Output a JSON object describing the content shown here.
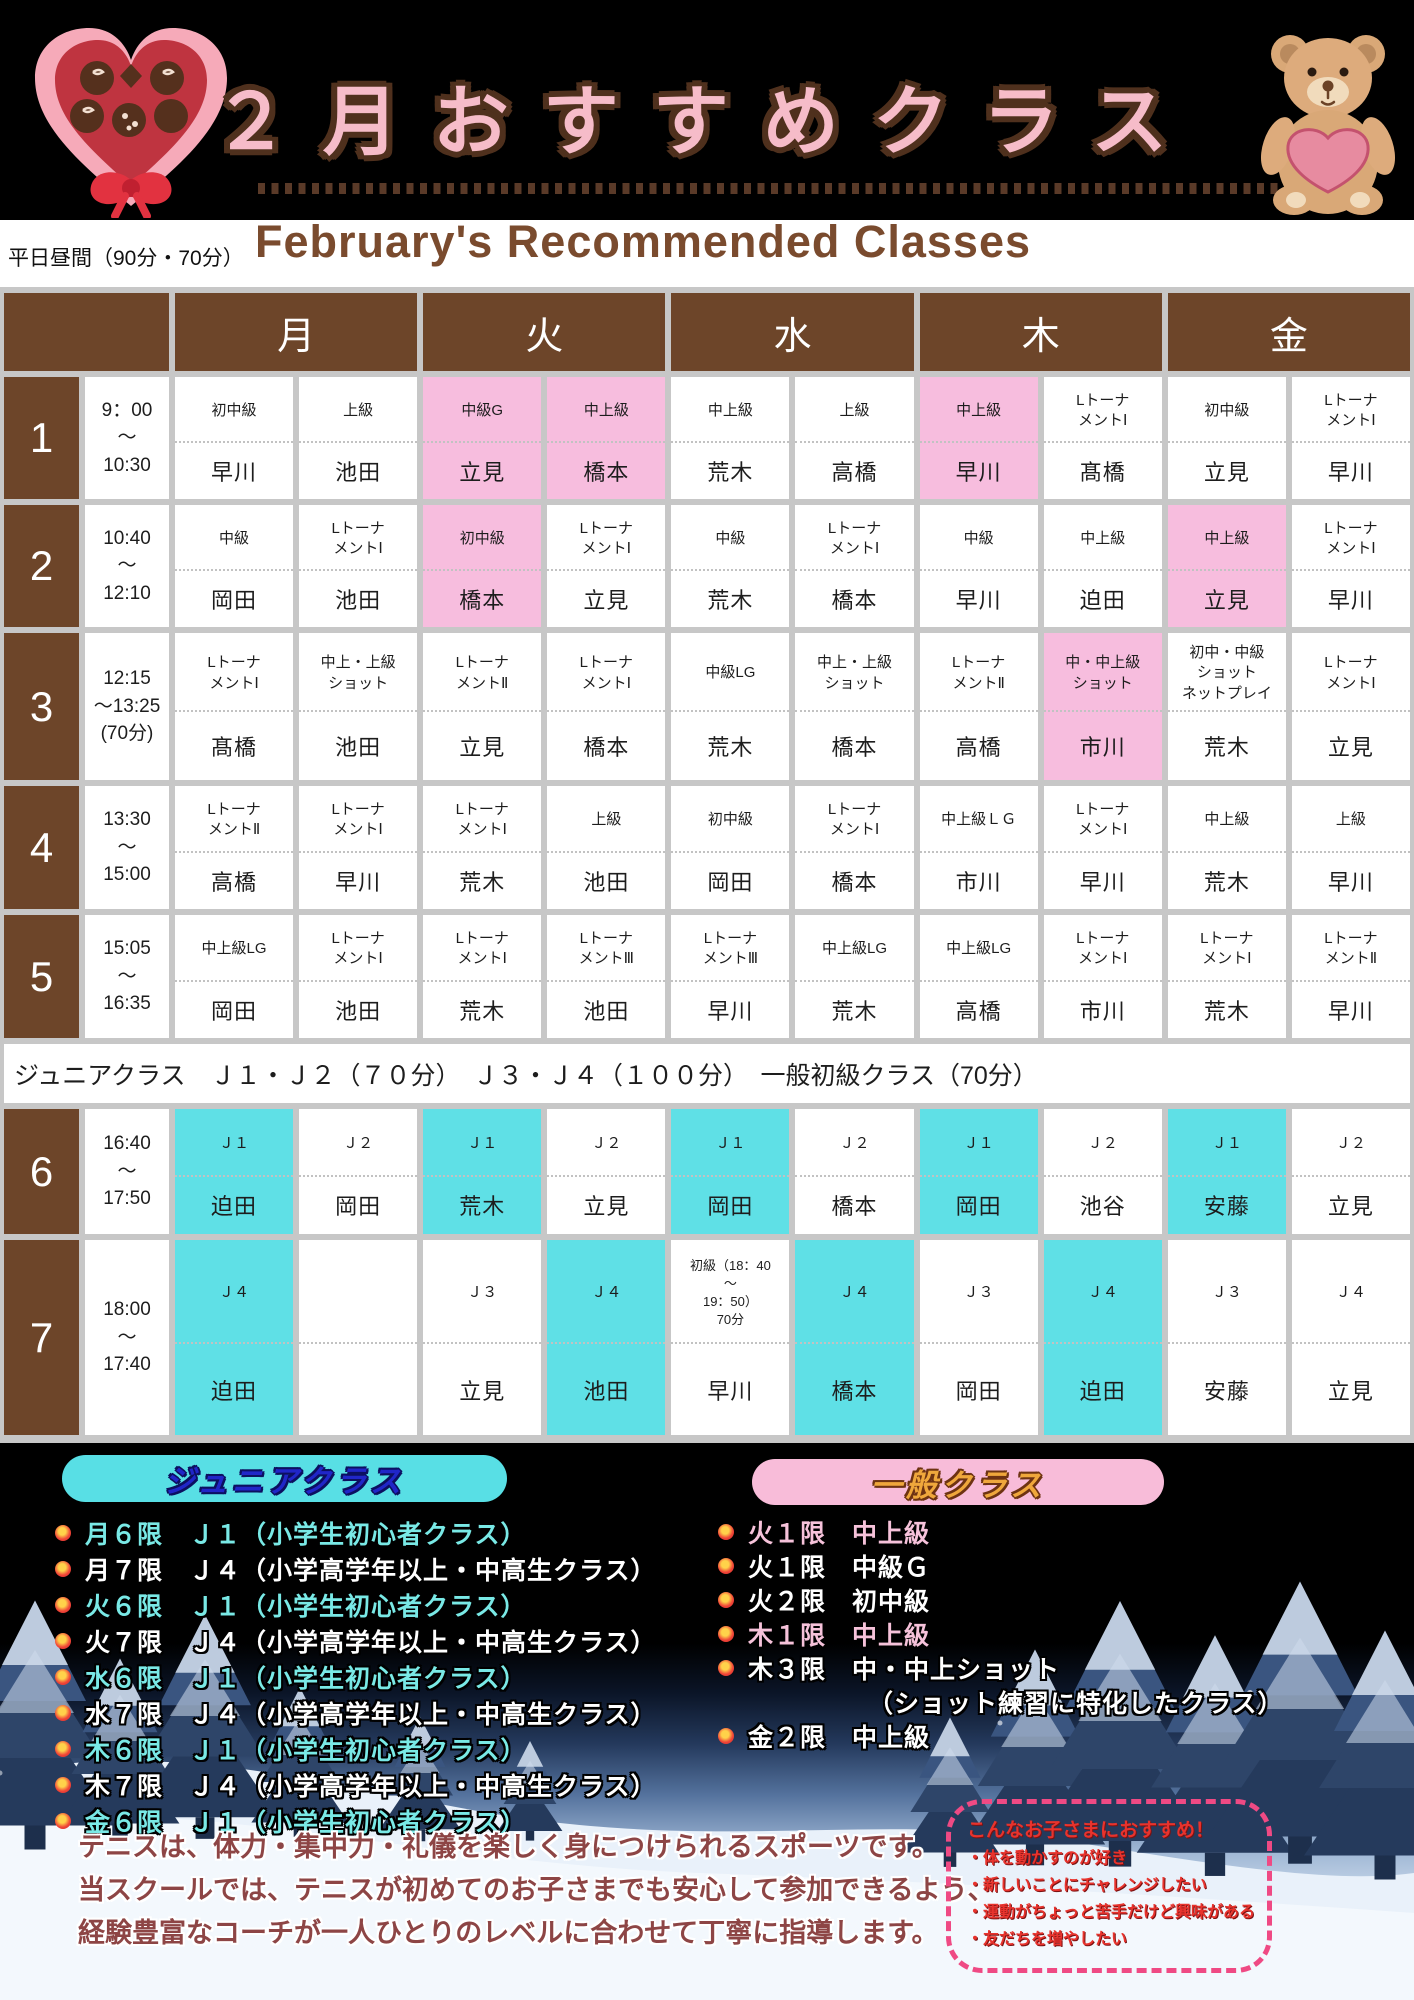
{
  "header": {
    "title": "２月おすすめクラス",
    "subtitle_en": "February's Recommended Classes",
    "weekday_note": "平日昼間（90分・70分）",
    "decor_left": "chocolate-heart-box",
    "decor_right": "teddy-bear-with-heart",
    "colors": {
      "bg": "#000000",
      "title_fill": "#f6bcc9",
      "title_outline": "#4f301d",
      "subtitle_fill": "#7a4b2e"
    }
  },
  "schedule": {
    "days": [
      "月",
      "火",
      "水",
      "木",
      "金"
    ],
    "colors": {
      "header_bg": "#6d4529",
      "grid": "#c7c7c7",
      "recommended_pink": "#f7bdde",
      "junior_cyan": "#5fe0e6",
      "default": "#ffffff"
    },
    "junior_band_note": "ジュニアクラス　Ｊ１・Ｊ２（７０分）　Ｊ３・Ｊ４（１００分）　一般初級クラス（70分）",
    "periods": [
      {
        "num": "1",
        "time": "9：00\n～\n10:30",
        "cells": [
          {
            "c": "初中級",
            "t": "早川",
            "bg": "w"
          },
          {
            "c": "上級",
            "t": "池田",
            "bg": "w"
          },
          {
            "c": "中級G",
            "t": "立見",
            "bg": "p"
          },
          {
            "c": "中上級",
            "t": "橋本",
            "bg": "p"
          },
          {
            "c": "中上級",
            "t": "荒木",
            "bg": "w"
          },
          {
            "c": "上級",
            "t": "高橋",
            "bg": "w"
          },
          {
            "c": "中上級",
            "t": "早川",
            "bg": "p"
          },
          {
            "c": "Lトーナ\nメントⅠ",
            "t": "髙橋",
            "bg": "w"
          },
          {
            "c": "初中級",
            "t": "立見",
            "bg": "w"
          },
          {
            "c": "Lトーナ\nメントⅠ",
            "t": "早川",
            "bg": "w"
          }
        ]
      },
      {
        "num": "2",
        "time": "10:40\n～\n12:10",
        "cells": [
          {
            "c": "中級",
            "t": "岡田",
            "bg": "w"
          },
          {
            "c": "Lトーナ\nメントⅠ",
            "t": "池田",
            "bg": "w"
          },
          {
            "c": "初中級",
            "t": "橋本",
            "bg": "p"
          },
          {
            "c": "Lトーナ\nメントⅠ",
            "t": "立見",
            "bg": "w"
          },
          {
            "c": "中級",
            "t": "荒木",
            "bg": "w"
          },
          {
            "c": "Lトーナ\nメントⅠ",
            "t": "橋本",
            "bg": "w"
          },
          {
            "c": "中級",
            "t": "早川",
            "bg": "w"
          },
          {
            "c": "中上級",
            "t": "迫田",
            "bg": "w"
          },
          {
            "c": "中上級",
            "t": "立見",
            "bg": "p"
          },
          {
            "c": "Lトーナ\nメントⅠ",
            "t": "早川",
            "bg": "w"
          }
        ]
      },
      {
        "num": "3",
        "time": "12:15\n～13:25\n(70分)",
        "cells": [
          {
            "c": "Lトーナ\nメントⅠ",
            "t": "髙橋",
            "bg": "w"
          },
          {
            "c": "中上・上級\nショット",
            "t": "池田",
            "bg": "w"
          },
          {
            "c": "Lトーナ\nメントⅡ",
            "t": "立見",
            "bg": "w"
          },
          {
            "c": "Lトーナ\nメントⅠ",
            "t": "橋本",
            "bg": "w"
          },
          {
            "c": "中級LG",
            "t": "荒木",
            "bg": "w"
          },
          {
            "c": "中上・上級\nショット",
            "t": "橋本",
            "bg": "w"
          },
          {
            "c": "Lトーナ\nメントⅡ",
            "t": "高橋",
            "bg": "w"
          },
          {
            "c": "中・中上級\nショット",
            "t": "市川",
            "bg": "p"
          },
          {
            "c": "初中・中級\nショット\nネットプレイ",
            "t": "荒木",
            "bg": "w"
          },
          {
            "c": "Lトーナ\nメントⅠ",
            "t": "立見",
            "bg": "w"
          }
        ]
      },
      {
        "num": "4",
        "time": "13:30\n～\n15:00",
        "cells": [
          {
            "c": "Lトーナ\nメントⅡ",
            "t": "高橋",
            "bg": "w"
          },
          {
            "c": "Lトーナ\nメントⅠ",
            "t": "早川",
            "bg": "w"
          },
          {
            "c": "Lトーナ\nメントⅠ",
            "t": "荒木",
            "bg": "w"
          },
          {
            "c": "上級",
            "t": "池田",
            "bg": "w"
          },
          {
            "c": "初中級",
            "t": "岡田",
            "bg": "w"
          },
          {
            "c": "Lトーナ\nメントⅠ",
            "t": "橋本",
            "bg": "w"
          },
          {
            "c": "中上級ＬＧ",
            "t": "市川",
            "bg": "w"
          },
          {
            "c": "Lトーナ\nメントⅠ",
            "t": "早川",
            "bg": "w"
          },
          {
            "c": "中上級",
            "t": "荒木",
            "bg": "w"
          },
          {
            "c": "上級",
            "t": "早川",
            "bg": "w"
          }
        ]
      },
      {
        "num": "5",
        "time": "15:05\n～\n16:35",
        "cells": [
          {
            "c": "中上級LG",
            "t": "岡田",
            "bg": "w"
          },
          {
            "c": "Lトーナ\nメントⅠ",
            "t": "池田",
            "bg": "w"
          },
          {
            "c": "Lトーナ\nメントⅠ",
            "t": "荒木",
            "bg": "w"
          },
          {
            "c": "Lトーナ\nメントⅢ",
            "t": "池田",
            "bg": "w"
          },
          {
            "c": "Lトーナ\nメントⅢ",
            "t": "早川",
            "bg": "w"
          },
          {
            "c": "中上級LG",
            "t": "荒木",
            "bg": "w"
          },
          {
            "c": "中上級LG",
            "t": "高橋",
            "bg": "w"
          },
          {
            "c": "Lトーナ\nメントⅠ",
            "t": "市川",
            "bg": "w"
          },
          {
            "c": "Lトーナ\nメントⅠ",
            "t": "荒木",
            "bg": "w"
          },
          {
            "c": "Lトーナ\nメントⅡ",
            "t": "早川",
            "bg": "w"
          }
        ]
      },
      {
        "num": "6",
        "time": "16:40\n～\n17:50",
        "cells": [
          {
            "c": "Ｊ１",
            "t": "迫田",
            "bg": "c"
          },
          {
            "c": "Ｊ２",
            "t": "岡田",
            "bg": "w"
          },
          {
            "c": "Ｊ１",
            "t": "荒木",
            "bg": "c"
          },
          {
            "c": "Ｊ２",
            "t": "立見",
            "bg": "w"
          },
          {
            "c": "Ｊ１",
            "t": "岡田",
            "bg": "c"
          },
          {
            "c": "Ｊ２",
            "t": "橋本",
            "bg": "w"
          },
          {
            "c": "Ｊ１",
            "t": "岡田",
            "bg": "c"
          },
          {
            "c": "Ｊ２",
            "t": "池谷",
            "bg": "w"
          },
          {
            "c": "Ｊ１",
            "t": "安藤",
            "bg": "c"
          },
          {
            "c": "Ｊ２",
            "t": "立見",
            "bg": "w"
          }
        ]
      },
      {
        "num": "7",
        "time": "18:00\n～\n17:40",
        "cells": [
          {
            "c": "Ｊ４",
            "t": "迫田",
            "bg": "c"
          },
          {
            "c": "",
            "t": "",
            "bg": "w"
          },
          {
            "c": "Ｊ３",
            "t": "立見",
            "bg": "w"
          },
          {
            "c": "Ｊ４",
            "t": "池田",
            "bg": "c"
          },
          {
            "c": "初級（18：40\n～\n19：50）\n70分",
            "t": "早川",
            "bg": "w"
          },
          {
            "c": "Ｊ４",
            "t": "橋本",
            "bg": "c"
          },
          {
            "c": "Ｊ３",
            "t": "岡田",
            "bg": "w"
          },
          {
            "c": "Ｊ４",
            "t": "迫田",
            "bg": "c"
          },
          {
            "c": "Ｊ３",
            "t": "安藤",
            "bg": "w"
          },
          {
            "c": "Ｊ４",
            "t": "立見",
            "bg": "w"
          }
        ]
      }
    ]
  },
  "junior_legend": {
    "title": "ジュニアクラス",
    "items": [
      {
        "text": "月６限　Ｊ１（小学生初心者クラス）",
        "highlight": "cyan"
      },
      {
        "text": "月７限　Ｊ４（小学高学年以上・中高生クラス）",
        "highlight": "white"
      },
      {
        "text": "火６限　Ｊ１（小学生初心者クラス）",
        "highlight": "cyan"
      },
      {
        "text": "火７限　Ｊ４（小学高学年以上・中高生クラス）",
        "highlight": "white"
      },
      {
        "text": "水６限　Ｊ１（小学生初心者クラス）",
        "highlight": "cyan"
      },
      {
        "text": "水７限　Ｊ４（小学高学年以上・中高生クラス）",
        "highlight": "white"
      },
      {
        "text": "木６限　Ｊ１（小学生初心者クラス）",
        "highlight": "cyan"
      },
      {
        "text": "木７限　Ｊ４（小学高学年以上・中高生クラス）",
        "highlight": "white"
      },
      {
        "text": "金６限　Ｊ１（小学生初心者クラス）",
        "highlight": "cyan"
      }
    ]
  },
  "general_legend": {
    "title": "一般クラス",
    "items": [
      {
        "text": "火１限　中上級",
        "highlight": "pink"
      },
      {
        "text": "火１限　中級Ｇ",
        "highlight": "white"
      },
      {
        "text": "火２限　初中級",
        "highlight": "white"
      },
      {
        "text": "木１限　中上級",
        "highlight": "pink"
      },
      {
        "text": "木３限　中・中上ショット",
        "highlight": "white"
      },
      {
        "text": "（ショット練習に特化したクラス）",
        "highlight": "white",
        "no_bullet": true
      },
      {
        "text": "金２限　中上級",
        "highlight": "white"
      }
    ]
  },
  "promo_lines": [
    "テニスは、体力・集中力・礼儀を楽しく身につけられるスポーツです。",
    "当スクールでは、テニスが初めてのお子さまでも安心して参加できるよう、",
    "経験豊富なコーチが一人ひとりのレベルに合わせて丁寧に指導します。"
  ],
  "recommend_box": {
    "title": "こんなお子さまにおすすめ！",
    "items": [
      "・体を動かすのが好き",
      "・新しいことにチャレンジしたい",
      "・運動がちょっと苦手だけど興味がある",
      "・友だちを増やしたい"
    ]
  }
}
